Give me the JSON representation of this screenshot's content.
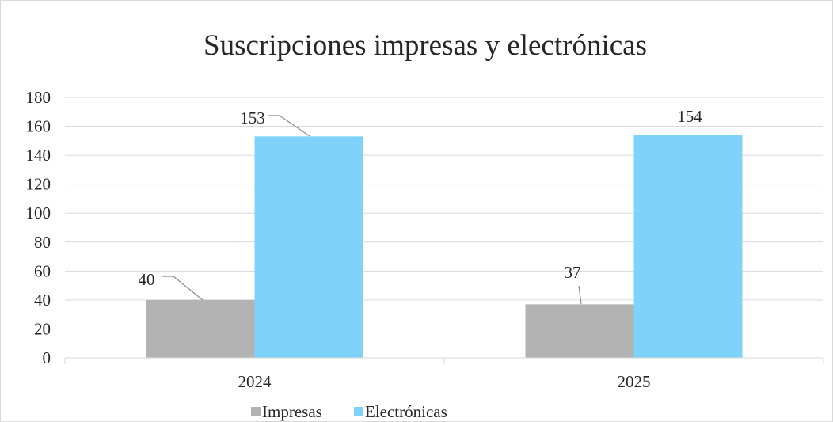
{
  "chart_data": {
    "type": "bar",
    "title": "Suscripciones impresas y electrónicas",
    "xlabel": "",
    "ylabel": "",
    "categories": [
      "2024",
      "2025"
    ],
    "series": [
      {
        "name": "Impresas",
        "values": [
          40,
          37
        ],
        "color": "#b3b3b3"
      },
      {
        "name": "Electrónicas",
        "values": [
          153,
          154
        ],
        "color": "#7fd3fa"
      }
    ],
    "ylim": [
      0,
      180
    ],
    "yticks": [
      0,
      20,
      40,
      60,
      80,
      100,
      120,
      140,
      160,
      180
    ],
    "grid": true,
    "legend_position": "bottom",
    "data_labels": true
  }
}
